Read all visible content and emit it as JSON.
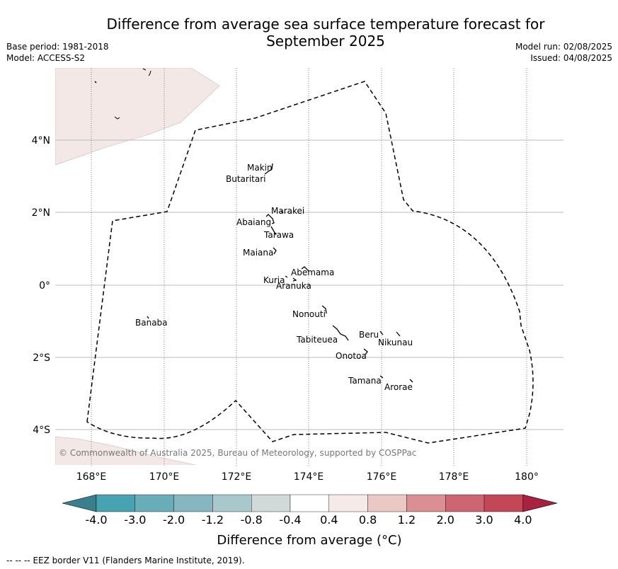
{
  "header": {
    "title_line1": "Difference from average sea surface temperature forecast for",
    "title_line2": "September 2025",
    "base_period": "Base period: 1981-2018",
    "model": "Model: ACCESS-S2",
    "model_run": "Model run: 02/08/2025",
    "issued": "Issued: 04/08/2025"
  },
  "map": {
    "lon_labels": [
      "168°E",
      "170°E",
      "172°E",
      "174°E",
      "176°E",
      "178°E",
      "180°"
    ],
    "lat_labels": [
      "4°N",
      "2°N",
      "0°",
      "2°S",
      "4°S"
    ],
    "copyright": "© Commonwealth of Australia 2025, Bureau of Meteorology, supported by COSPPac",
    "land_color": "#f3e8e6",
    "islands": [
      {
        "name": "Makin"
      },
      {
        "name": "Butaritari"
      },
      {
        "name": "Marakei"
      },
      {
        "name": "Abaiang"
      },
      {
        "name": "Tarawa"
      },
      {
        "name": "Maiana"
      },
      {
        "name": "Abemama"
      },
      {
        "name": "Kuria"
      },
      {
        "name": "Aranuka"
      },
      {
        "name": "Nonouti"
      },
      {
        "name": "Banaba"
      },
      {
        "name": "Beru"
      },
      {
        "name": "Tabiteuea"
      },
      {
        "name": "Nikunau"
      },
      {
        "name": "Onotoa"
      },
      {
        "name": "Tamana"
      },
      {
        "name": "Arorae"
      }
    ]
  },
  "colorbar": {
    "tick_labels": [
      "-4.0",
      "-3.0",
      "-2.0",
      "-1.2",
      "-0.8",
      "-0.4",
      "0.4",
      "0.8",
      "1.2",
      "2.0",
      "3.0",
      "4.0"
    ],
    "under_color": "#3a7f8e",
    "colors": [
      "#47a2b1",
      "#69adb9",
      "#86b7c1",
      "#a8c8cc",
      "#d2d9d9",
      "#ffffff",
      "#f6eae8",
      "#eac8c4",
      "#da8f95",
      "#cd6672",
      "#c34756"
    ],
    "over_color": "#a9213e",
    "label": "Difference from average (°C)"
  },
  "footer": {
    "legend_symbol": "--  --  --",
    "legend_text": "EEZ border V11 (Flanders Marine Institute, 2019)."
  }
}
